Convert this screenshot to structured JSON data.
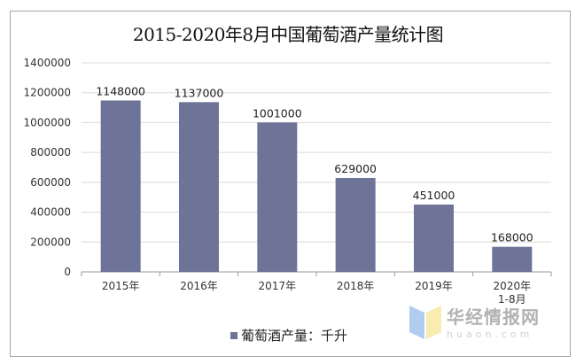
{
  "chart_data": {
    "type": "bar",
    "title": "2015-2020年8月中国葡萄酒产量统计图",
    "categories": [
      "2015年",
      "2016年",
      "2017年",
      "2018年",
      "2019年",
      "2020年\n1-8月"
    ],
    "series": [
      {
        "name": "葡萄酒产量：千升",
        "values": [
          1148000,
          1137000,
          1001000,
          629000,
          451000,
          168000
        ],
        "color": "#6e7398"
      }
    ],
    "ylim": [
      0,
      1400000
    ],
    "yticks": [
      0,
      200000,
      400000,
      600000,
      800000,
      1000000,
      1200000,
      1400000
    ],
    "grid": true,
    "legend": "bottom"
  },
  "watermark": {
    "name": "华经情报网",
    "url": "huaon.com"
  }
}
